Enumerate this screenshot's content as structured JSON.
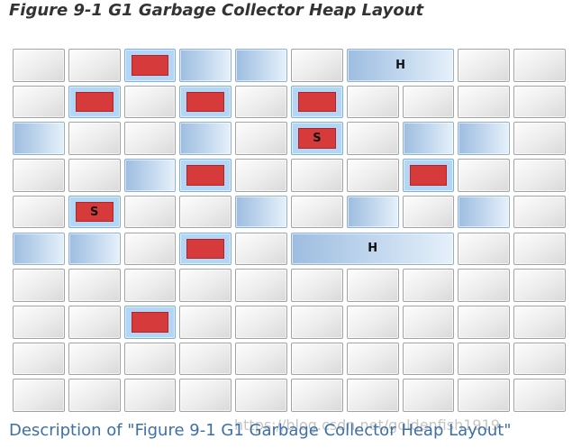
{
  "figure": {
    "title": "Figure 9-1 G1 Garbage Collector Heap Layout"
  },
  "description_link": {
    "label": "Description of \"Figure 9-1 G1 Garbage Collector Heap Layout\""
  },
  "watermark": {
    "text": "https://blog.csdn.net/goldenfish1919"
  },
  "heap": {
    "columns": 10,
    "rows": 10,
    "regions": [
      {
        "row": 0,
        "col": 2,
        "span": 1,
        "kind": "eden"
      },
      {
        "row": 0,
        "col": 3,
        "span": 1,
        "kind": "blue"
      },
      {
        "row": 0,
        "col": 4,
        "span": 1,
        "kind": "blue"
      },
      {
        "row": 0,
        "col": 6,
        "span": 2,
        "kind": "humongous",
        "label": "H"
      },
      {
        "row": 1,
        "col": 1,
        "span": 1,
        "kind": "eden"
      },
      {
        "row": 1,
        "col": 3,
        "span": 1,
        "kind": "eden"
      },
      {
        "row": 1,
        "col": 5,
        "span": 1,
        "kind": "eden"
      },
      {
        "row": 2,
        "col": 0,
        "span": 1,
        "kind": "blue"
      },
      {
        "row": 2,
        "col": 3,
        "span": 1,
        "kind": "blue"
      },
      {
        "row": 2,
        "col": 5,
        "span": 1,
        "kind": "survivor",
        "label": "S"
      },
      {
        "row": 2,
        "col": 7,
        "span": 1,
        "kind": "blue"
      },
      {
        "row": 2,
        "col": 8,
        "span": 1,
        "kind": "blue"
      },
      {
        "row": 3,
        "col": 2,
        "span": 1,
        "kind": "blue"
      },
      {
        "row": 3,
        "col": 3,
        "span": 1,
        "kind": "eden"
      },
      {
        "row": 3,
        "col": 7,
        "span": 1,
        "kind": "eden"
      },
      {
        "row": 4,
        "col": 1,
        "span": 1,
        "kind": "survivor",
        "label": "S"
      },
      {
        "row": 4,
        "col": 4,
        "span": 1,
        "kind": "blue"
      },
      {
        "row": 4,
        "col": 6,
        "span": 1,
        "kind": "blue"
      },
      {
        "row": 4,
        "col": 8,
        "span": 1,
        "kind": "blue"
      },
      {
        "row": 5,
        "col": 0,
        "span": 1,
        "kind": "blue"
      },
      {
        "row": 5,
        "col": 1,
        "span": 1,
        "kind": "blue"
      },
      {
        "row": 5,
        "col": 3,
        "span": 1,
        "kind": "eden"
      },
      {
        "row": 5,
        "col": 5,
        "span": 3,
        "kind": "humongous",
        "label": "H"
      },
      {
        "row": 7,
        "col": 2,
        "span": 1,
        "kind": "eden"
      }
    ]
  }
}
